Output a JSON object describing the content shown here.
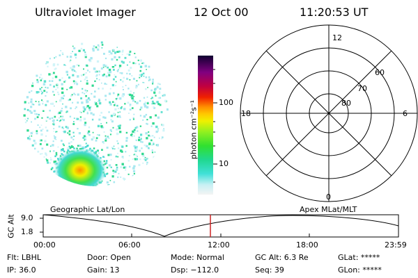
{
  "header": {
    "instrument": "Ultraviolet Imager",
    "date": "12 Oct 00",
    "time": "11:20:53 UT"
  },
  "colorbar": {
    "unit_label": "photon cm⁻²s⁻¹",
    "ticks": [
      "100",
      "10"
    ]
  },
  "polar_plot": {
    "clock_labels": {
      "top": "12",
      "left": "18",
      "right": "6",
      "bottom": "0"
    },
    "lat_labels": [
      "60",
      "70",
      "80"
    ]
  },
  "map_labels": {
    "left": "Geographic Lat/Lon",
    "right": "Apex MLat/MLT"
  },
  "altitude_plot": {
    "ylabel": "GC Alt",
    "yticks": [
      "9.0",
      "1.8"
    ],
    "xticks": [
      "00:00",
      "06:00",
      "12:00",
      "18:00",
      "23:59"
    ],
    "current_time_marker": "11:20"
  },
  "status": {
    "filter": "Flt: LBHL",
    "ip": "IP: 36.0",
    "door": "Door: Open",
    "gain": "Gain: 13",
    "mode": "Mode: Normal",
    "dsp": "Dsp: −112.0",
    "gc_alt": "GC Alt: 6.3 Re",
    "seq": "Seq: 39",
    "glat": "GLat: *****",
    "glon": "GLon: *****"
  },
  "colors": {
    "marker": "#cc2222",
    "aurora_low": "#a8e8f0",
    "aurora_mid": "#30d890",
    "aurora_high": "#e8e020"
  }
}
